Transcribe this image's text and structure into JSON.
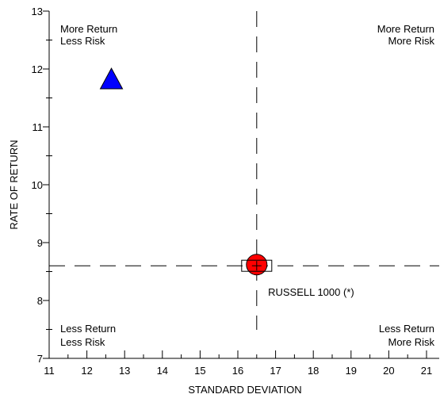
{
  "chart_data": {
    "type": "scatter",
    "xlabel": "STANDARD DEVIATION",
    "ylabel": "RATE OF RETURN",
    "xlim": [
      11,
      21.3
    ],
    "ylim": [
      7,
      13
    ],
    "x_ticks": [
      "11",
      "12",
      "13",
      "14",
      "15",
      "16",
      "17",
      "18",
      "19",
      "20",
      "21"
    ],
    "y_ticks": [
      "7",
      "8",
      "9",
      "10",
      "11",
      "12",
      "13"
    ],
    "grid": false,
    "reference_lines": {
      "x": 16.5,
      "y": 8.6,
      "style": "dashed"
    },
    "quadrant_labels": {
      "top_left": [
        "More Return",
        "Less Risk"
      ],
      "top_right": [
        "More Return",
        "More Risk"
      ],
      "bottom_left": [
        "Less Return",
        "Less Risk"
      ],
      "bottom_right": [
        "Less Return",
        "More Risk"
      ]
    },
    "points": [
      {
        "marker": "triangle",
        "color": "#0000ff",
        "x": 12.65,
        "y": 11.82
      },
      {
        "marker": "circle",
        "color": "#ff0000",
        "x": 16.5,
        "y": 8.62
      },
      {
        "marker": "square-cross",
        "color": "#000000",
        "x": 16.5,
        "y": 8.6
      }
    ],
    "annotations": [
      {
        "text": "RUSSELL 1000 (*)",
        "x": 16.8,
        "y": 8.15
      }
    ]
  }
}
